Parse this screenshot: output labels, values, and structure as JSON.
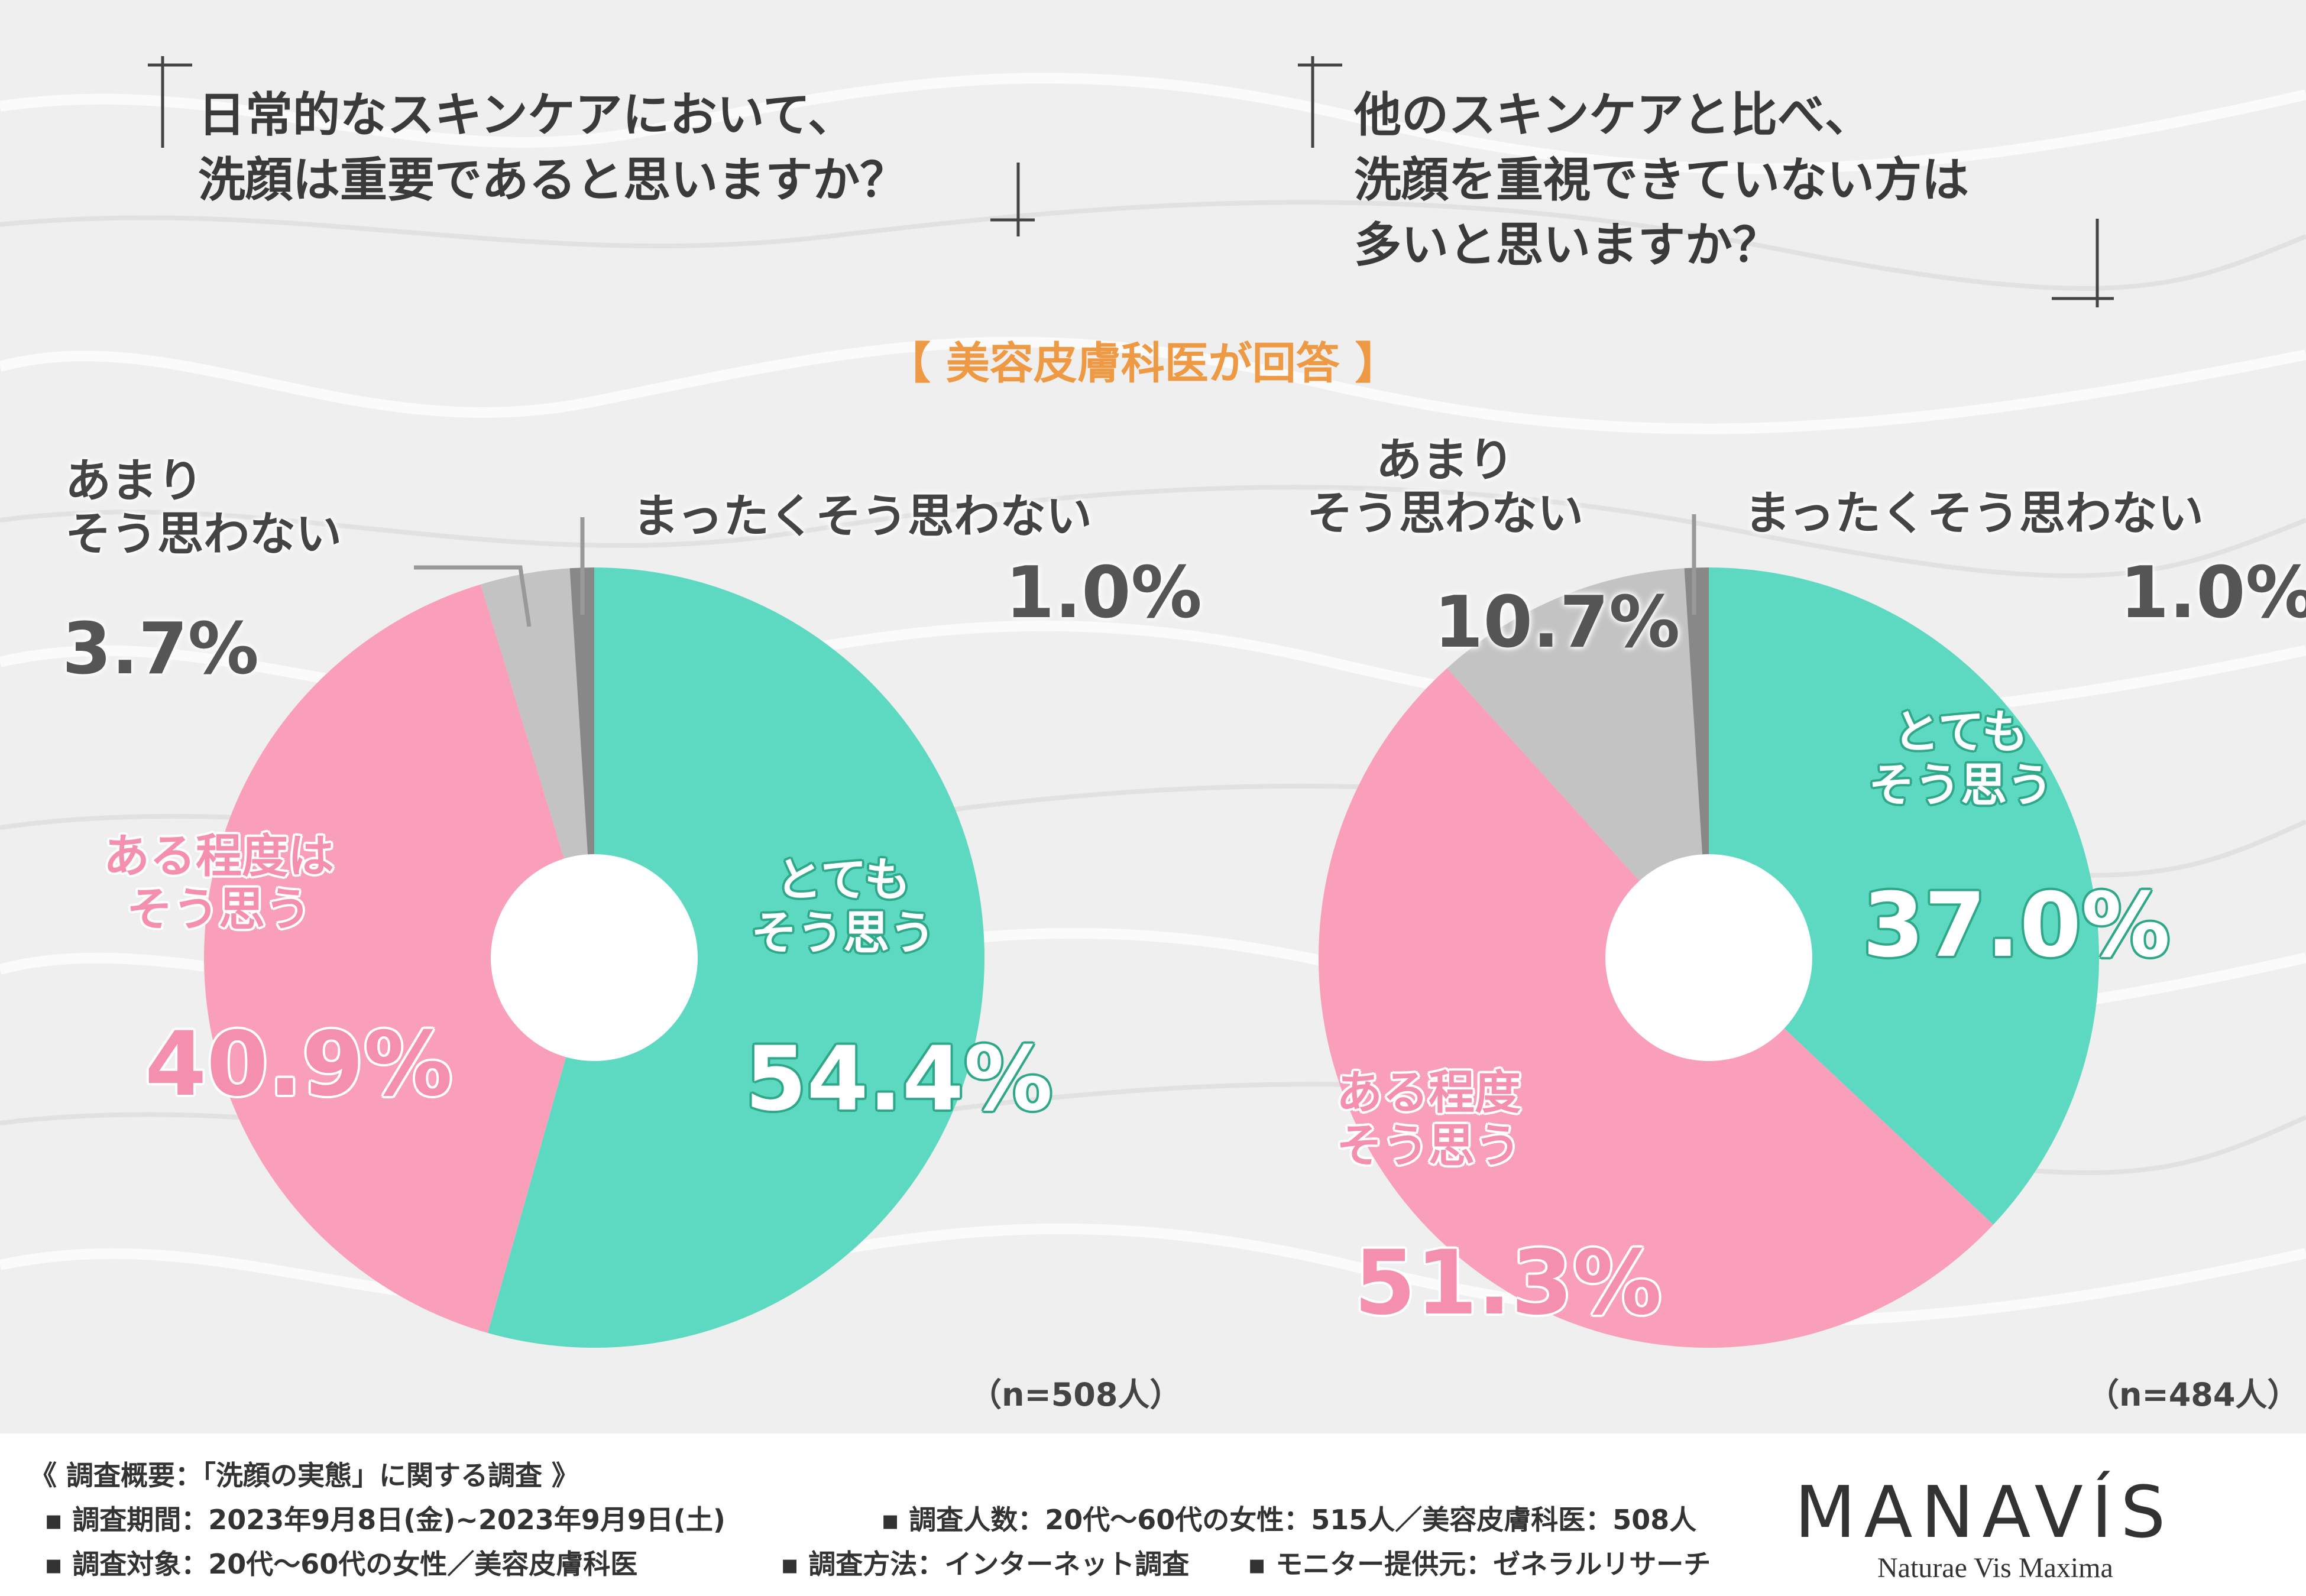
{
  "chart_data": [
    {
      "type": "pie",
      "title": "日常的なスキンケアにおいて、洗顔は重要であると思いますか？",
      "categories": [
        "とてもそう思う",
        "ある程度はそう思う",
        "あまりそう思わない",
        "まったくそう思わない"
      ],
      "values": [
        54.4,
        40.9,
        3.7,
        1.0
      ],
      "colors": [
        "#5dd9c1",
        "#f99fba",
        "#c3c3c3",
        "#888888"
      ],
      "labels": [
        {
          "lines": [
            "とても",
            "そう思う"
          ],
          "pct": "54.4%"
        },
        {
          "lines": [
            "ある程度は",
            "そう思う"
          ],
          "pct": "40.9%"
        },
        {
          "lines": [
            "あまり",
            "そう思わない"
          ],
          "pct": "3.7%"
        },
        {
          "lines": [
            "まったくそう思わない"
          ],
          "pct": "1.0%"
        }
      ],
      "n": "（n=508人）"
    },
    {
      "type": "pie",
      "title": "他のスキンケアと比べ、洗顔を重視できていない方は多いと思いますか？",
      "categories": [
        "とてもそう思う",
        "ある程度そう思う",
        "あまりそう思わない",
        "まったくそう思わない"
      ],
      "values": [
        37.0,
        51.3,
        10.7,
        1.0
      ],
      "colors": [
        "#5dd9c1",
        "#f99fba",
        "#c3c3c3",
        "#888888"
      ],
      "labels": [
        {
          "lines": [
            "とても",
            "そう思う"
          ],
          "pct": "37.0%"
        },
        {
          "lines": [
            "ある程度",
            "そう思う"
          ],
          "pct": "51.3%"
        },
        {
          "lines": [
            "あまり",
            "そう思わない"
          ],
          "pct": "10.7%"
        },
        {
          "lines": [
            "まったくそう思わない"
          ],
          "pct": "1.0%"
        }
      ],
      "n": "（n=484人）"
    }
  ],
  "questions": {
    "q1": [
      "日常的なスキンケアにおいて、",
      "洗顔は重要であると思いますか？"
    ],
    "q2": [
      "他のスキンケアと比べ、",
      "洗顔を重視できていない方は",
      "多いと思いますか？"
    ]
  },
  "badge": "【 美容皮膚科医が回答 】",
  "footer": {
    "heading": "《 調査概要：「洗顔の実態」に関する調査 》",
    "period": "▪ 調査期間：2023年9月8日(金)~2023年9月9日(土)",
    "count": "▪ 調査人数：20代〜60代の女性：515人／美容皮膚科医：508人",
    "target": "▪ 調査対象：20代〜60代の女性／美容皮膚科医",
    "method": "▪ 調査方法：インターネット調査",
    "provider": "▪ モニター提供元：ゼネラルリサーチ"
  },
  "logo": {
    "main": "MANAVÍS",
    "sub": "Naturae Vis Maxima"
  }
}
